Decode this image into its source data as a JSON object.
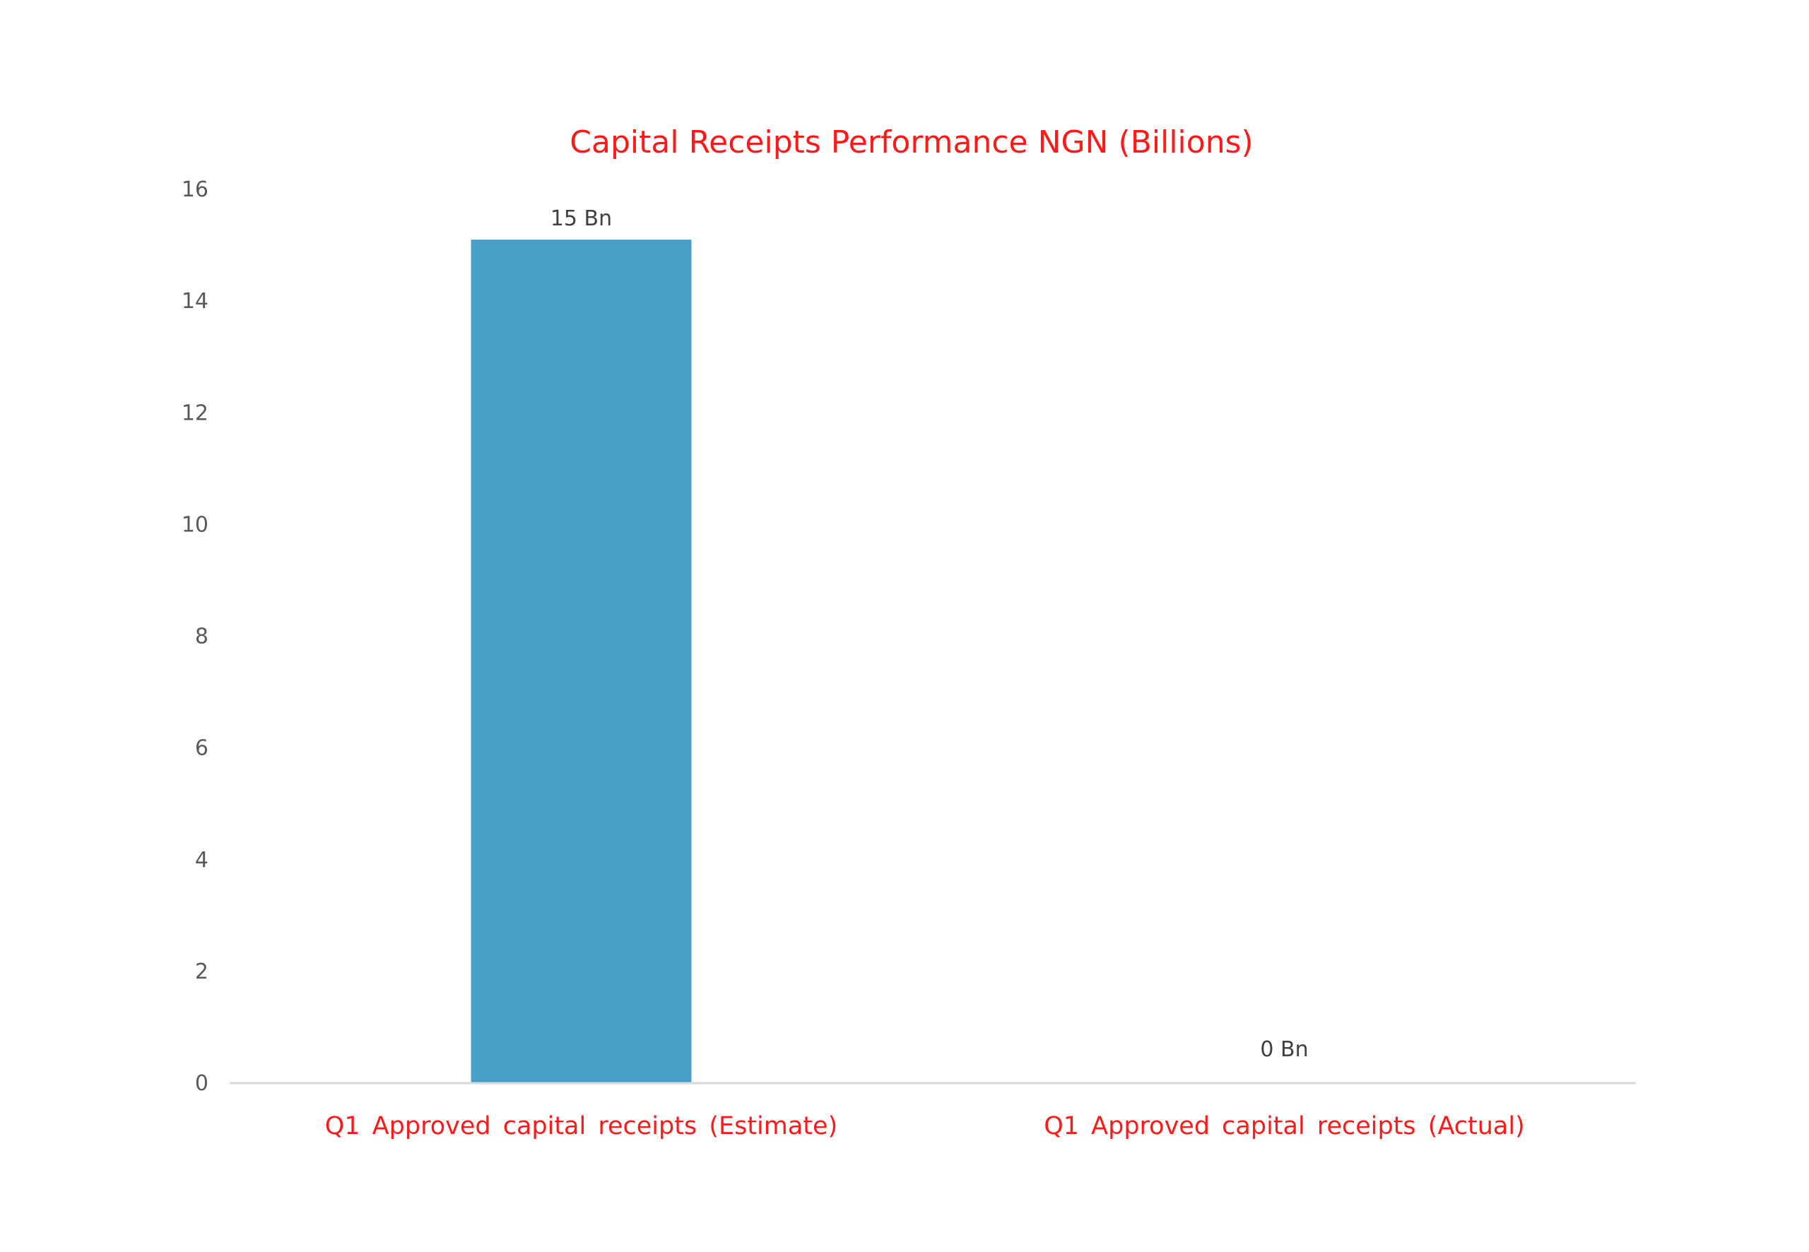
{
  "chart_data": {
    "type": "bar",
    "title": "Capital Receipts Performance NGN (Billions)",
    "categories": [
      "Q1  Approved  capital  receipts  (Estimate)",
      "Q1  Approved  capital  receipts  (Actual)"
    ],
    "values": [
      15.1,
      0
    ],
    "data_labels": [
      "15 Bn",
      "0 Bn"
    ],
    "ylim": [
      0,
      16
    ],
    "yticks": [
      0,
      2,
      4,
      6,
      8,
      10,
      12,
      14,
      16
    ],
    "grid": false,
    "legend": "none",
    "colors": {
      "bar": "#48a0c9",
      "title": "#ff1a1a",
      "category_labels": "#ff1a1a",
      "axis_line": "#d9d9d9"
    }
  }
}
